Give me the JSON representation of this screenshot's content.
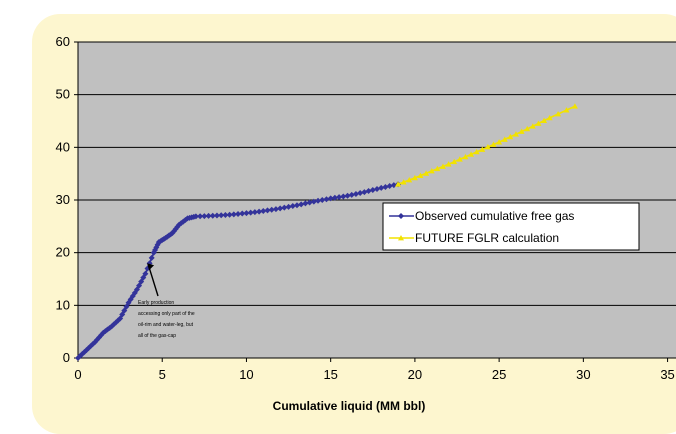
{
  "chart_data": {
    "type": "line",
    "title": "",
    "xlabel": "Cumulative liquid (MM bbl)",
    "ylabel": "",
    "xlim": [
      0,
      35
    ],
    "ylim": [
      0,
      60
    ],
    "x_ticks": [
      "0",
      "5",
      "10",
      "15",
      "20",
      "25",
      "30",
      "35"
    ],
    "y_ticks": [
      "0",
      "10",
      "20",
      "30",
      "40",
      "50",
      "60"
    ],
    "grid": "horizontal",
    "background": "#c0c0c0",
    "legend_position": "right-middle",
    "series": [
      {
        "name": "Observed cumulative free gas",
        "color": "#33339a",
        "marker": "diamond",
        "points": [
          [
            0,
            0
          ],
          [
            0.5,
            1.5
          ],
          [
            1,
            3
          ],
          [
            1.5,
            4.8
          ],
          [
            2,
            6
          ],
          [
            2.5,
            7.5
          ],
          [
            3,
            10.5
          ],
          [
            3.5,
            13
          ],
          [
            4,
            16
          ],
          [
            4.5,
            20
          ],
          [
            4.8,
            22
          ],
          [
            5.2,
            22.8
          ],
          [
            5.6,
            23.7
          ],
          [
            6,
            25.3
          ],
          [
            6.5,
            26.5
          ],
          [
            7,
            26.9
          ],
          [
            8,
            27
          ],
          [
            9,
            27.2
          ],
          [
            10,
            27.5
          ],
          [
            11,
            27.9
          ],
          [
            12,
            28.4
          ],
          [
            13,
            29
          ],
          [
            14,
            29.7
          ],
          [
            15,
            30.3
          ],
          [
            16,
            30.8
          ],
          [
            17,
            31.5
          ],
          [
            18,
            32.3
          ],
          [
            19,
            33
          ]
        ]
      },
      {
        "name": "FUTURE FGLR calculation",
        "color": "#f2e200",
        "marker": "triangle",
        "points": [
          [
            19,
            33
          ],
          [
            20,
            34.2
          ],
          [
            21,
            35.5
          ],
          [
            22,
            36.8
          ],
          [
            23,
            38.2
          ],
          [
            24,
            39.6
          ],
          [
            25,
            41
          ],
          [
            26,
            42.5
          ],
          [
            27,
            44
          ],
          [
            28,
            45.6
          ],
          [
            29.5,
            47.8
          ]
        ]
      }
    ],
    "annotation": {
      "lines": [
        "Early production",
        "accessing only part of the",
        "oil-rim and water-leg, but",
        "all of the gas-cap"
      ],
      "arrow_target": [
        4.1,
        18
      ]
    }
  }
}
